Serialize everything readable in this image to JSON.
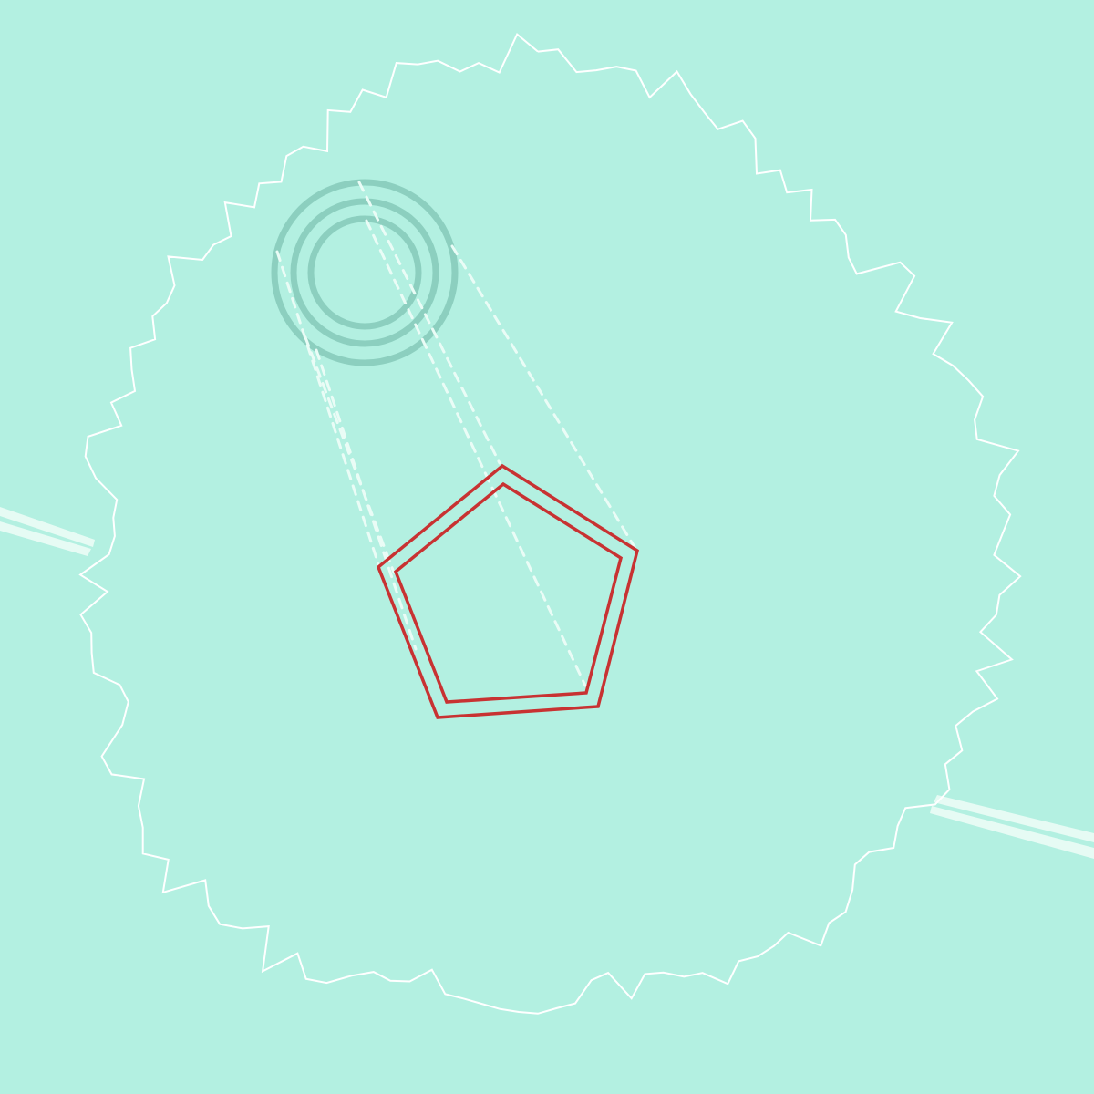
{
  "colors": {
    "background": "#b3f0e1",
    "outline": "#ffffff",
    "rings": "#8ccfbf",
    "pentagon": "#c83232",
    "dashes": "#eafcf6",
    "beam": "#e6fbf4"
  },
  "shapes": {
    "blob": "jagged-outline",
    "rings": "concentric-circles",
    "target": "double-pentagon",
    "links": "dashed-lines",
    "beam": "double-stripe"
  }
}
